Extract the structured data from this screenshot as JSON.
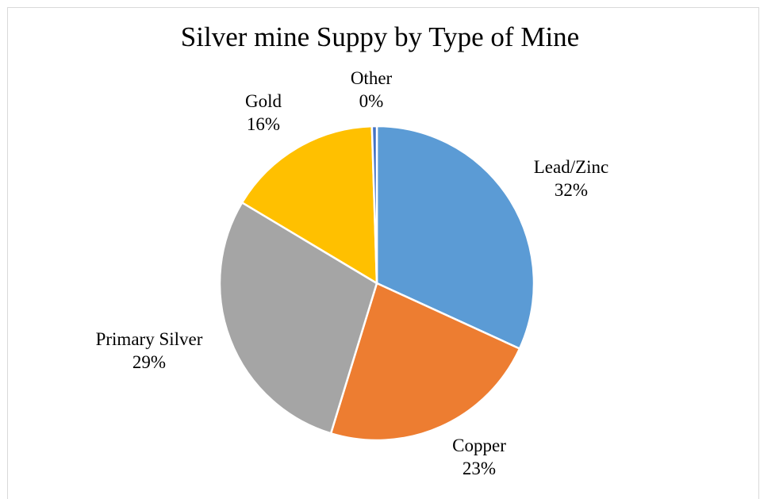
{
  "chart_data": {
    "type": "pie",
    "title": "Silver mine Suppy by Type of Mine",
    "slices": [
      {
        "label": "Lead/Zinc",
        "value": 32,
        "value_label": "32%",
        "color": "#5b9bd5"
      },
      {
        "label": "Copper",
        "value": 23,
        "value_label": "23%",
        "color": "#ed7d31"
      },
      {
        "label": "Primary Silver",
        "value": 29,
        "value_label": "29%",
        "color": "#a5a5a5"
      },
      {
        "label": "Gold",
        "value": 16,
        "value_label": "16%",
        "color": "#ffc000"
      },
      {
        "label": "Other",
        "value": 0.5,
        "value_label": "0%",
        "color": "#4472c4"
      }
    ],
    "legend": "none",
    "grid": false
  }
}
